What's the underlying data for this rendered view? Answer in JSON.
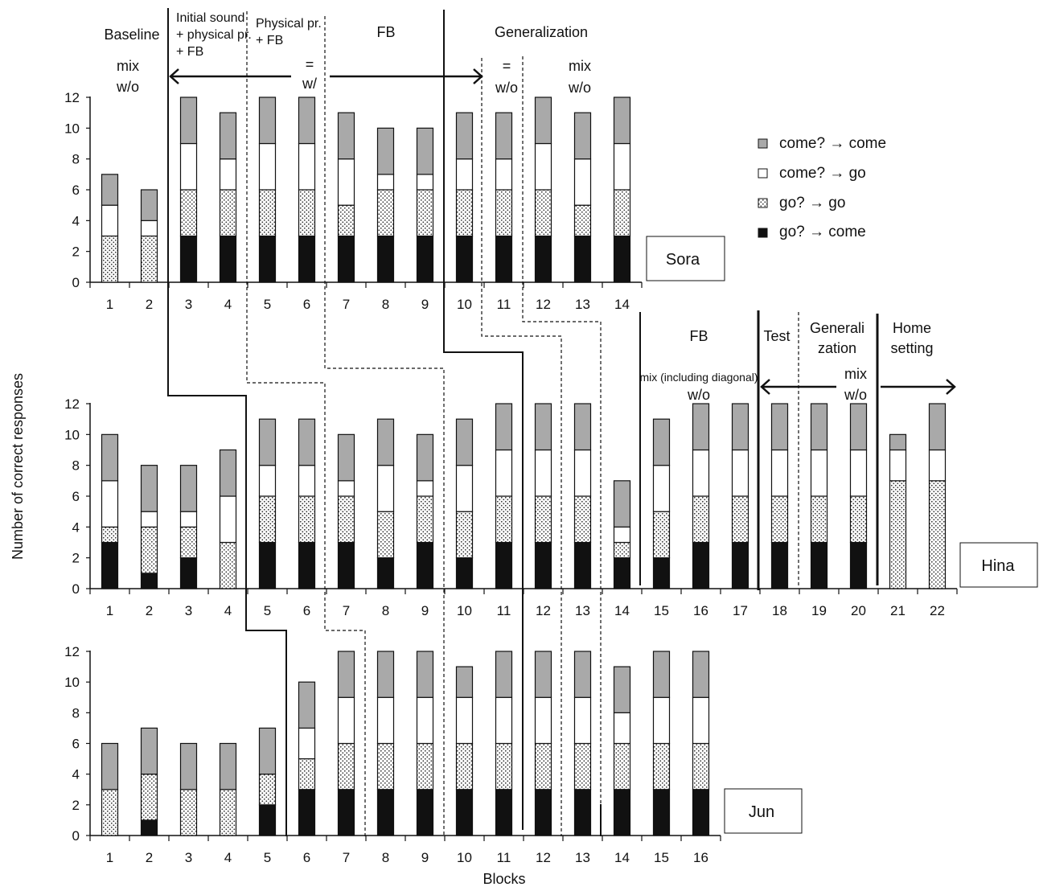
{
  "chart_data": {
    "type": "bar",
    "stacked": true,
    "ylabel": "Number of correct responses",
    "xlabel": "Blocks",
    "ylim": [
      0,
      12
    ],
    "yticks": [
      0,
      2,
      4,
      6,
      8,
      10,
      12
    ],
    "legend": {
      "placement": "top-right",
      "entries": [
        {
          "label": "come? → come",
          "key": "cc"
        },
        {
          "label": "come? → go",
          "key": "cg"
        },
        {
          "label": "go? → go",
          "key": "gg"
        },
        {
          "label": "go? → come",
          "key": "gc"
        }
      ]
    },
    "series_order_bottom_to_top": [
      "go? → come",
      "go? → go",
      "come? → go",
      "come? → come"
    ],
    "colors": {
      "gc": "#111111",
      "gg": "#ffffff",
      "cg": "#ffffff",
      "cc": "#a9a9a9"
    },
    "panels": [
      {
        "participant": "Sora",
        "categories": [
          "1",
          "2",
          "3",
          "4",
          "5",
          "6",
          "7",
          "8",
          "9",
          "10",
          "11",
          "12",
          "13",
          "14"
        ],
        "series": [
          {
            "name": "go? → come",
            "values": [
              0,
              0,
              3,
              3,
              3,
              3,
              3,
              3,
              3,
              3,
              3,
              3,
              3,
              3
            ]
          },
          {
            "name": "go? → go",
            "values": [
              3,
              3,
              3,
              3,
              3,
              3,
              2,
              3,
              3,
              3,
              3,
              3,
              2,
              3
            ]
          },
          {
            "name": "come? → go",
            "values": [
              2,
              1,
              3,
              2,
              3,
              3,
              3,
              1,
              1,
              2,
              2,
              3,
              3,
              3
            ]
          },
          {
            "name": "come? → come",
            "values": [
              2,
              2,
              3,
              3,
              3,
              3,
              3,
              3,
              3,
              3,
              3,
              3,
              3,
              3
            ]
          }
        ]
      },
      {
        "participant": "Hina",
        "categories": [
          "1",
          "2",
          "3",
          "4",
          "5",
          "6",
          "7",
          "8",
          "9",
          "10",
          "11",
          "12",
          "13",
          "14",
          "15",
          "16",
          "17",
          "18",
          "19",
          "20",
          "21",
          "22"
        ],
        "series": [
          {
            "name": "go? → come",
            "values": [
              3,
              1,
              2,
              0,
              3,
              3,
              3,
              2,
              3,
              2,
              3,
              3,
              3,
              2,
              2,
              3,
              3,
              3,
              3,
              3,
              0,
              0
            ]
          },
          {
            "name": "go? → go",
            "values": [
              1,
              3,
              2,
              3,
              3,
              3,
              3,
              3,
              3,
              3,
              3,
              3,
              3,
              1,
              3,
              3,
              3,
              3,
              3,
              3,
              7,
              7
            ]
          },
          {
            "name": "come? → go",
            "values": [
              3,
              1,
              1,
              3,
              2,
              2,
              1,
              3,
              1,
              3,
              3,
              3,
              3,
              1,
              3,
              3,
              3,
              3,
              3,
              3,
              2,
              2
            ]
          },
          {
            "name": "come? → come",
            "values": [
              3,
              3,
              3,
              3,
              3,
              3,
              3,
              3,
              3,
              3,
              3,
              3,
              3,
              3,
              3,
              3,
              3,
              3,
              3,
              3,
              1,
              3
            ]
          }
        ]
      },
      {
        "participant": "Jun",
        "categories": [
          "1",
          "2",
          "3",
          "4",
          "5",
          "6",
          "7",
          "8",
          "9",
          "10",
          "11",
          "12",
          "13",
          "14",
          "15",
          "16"
        ],
        "series": [
          {
            "name": "go? → come",
            "values": [
              0,
              1,
              0,
              0,
              2,
              3,
              3,
              3,
              3,
              3,
              3,
              3,
              3,
              3,
              3,
              3
            ]
          },
          {
            "name": "go? → go",
            "values": [
              3,
              3,
              3,
              3,
              2,
              2,
              3,
              3,
              3,
              3,
              3,
              3,
              3,
              3,
              3,
              3
            ]
          },
          {
            "name": "come? → go",
            "values": [
              0,
              0,
              0,
              0,
              0,
              2,
              3,
              3,
              3,
              3,
              3,
              3,
              3,
              2,
              3,
              3
            ]
          },
          {
            "name": "come? → come",
            "values": [
              3,
              3,
              3,
              3,
              3,
              3,
              3,
              3,
              3,
              2,
              3,
              3,
              3,
              3,
              3,
              3
            ]
          }
        ]
      }
    ],
    "annotations": {
      "baseline": "Baseline",
      "initial_sound": [
        "Initial sound",
        "+ physical pr.",
        "+ FB"
      ],
      "physical_pr": [
        "Physical pr.",
        "+ FB"
      ],
      "fb_top": "FB",
      "generalization": "Generalization",
      "mix_a": "mix",
      "wo_a": "w/o",
      "eq_a": "=",
      "w_a": "w/",
      "eq_b": "=",
      "wo_b": "w/o",
      "mix_b": "mix",
      "wo_c": "w/o",
      "fb_hina": "FB",
      "mix_diag": "mix (including diagonal)",
      "wo_d": "w/o",
      "test": "Test",
      "generali": [
        "Generali",
        "zation"
      ],
      "mix_e": "mix",
      "wo_e": "w/o",
      "home_setting": [
        "Home",
        "setting"
      ]
    }
  }
}
